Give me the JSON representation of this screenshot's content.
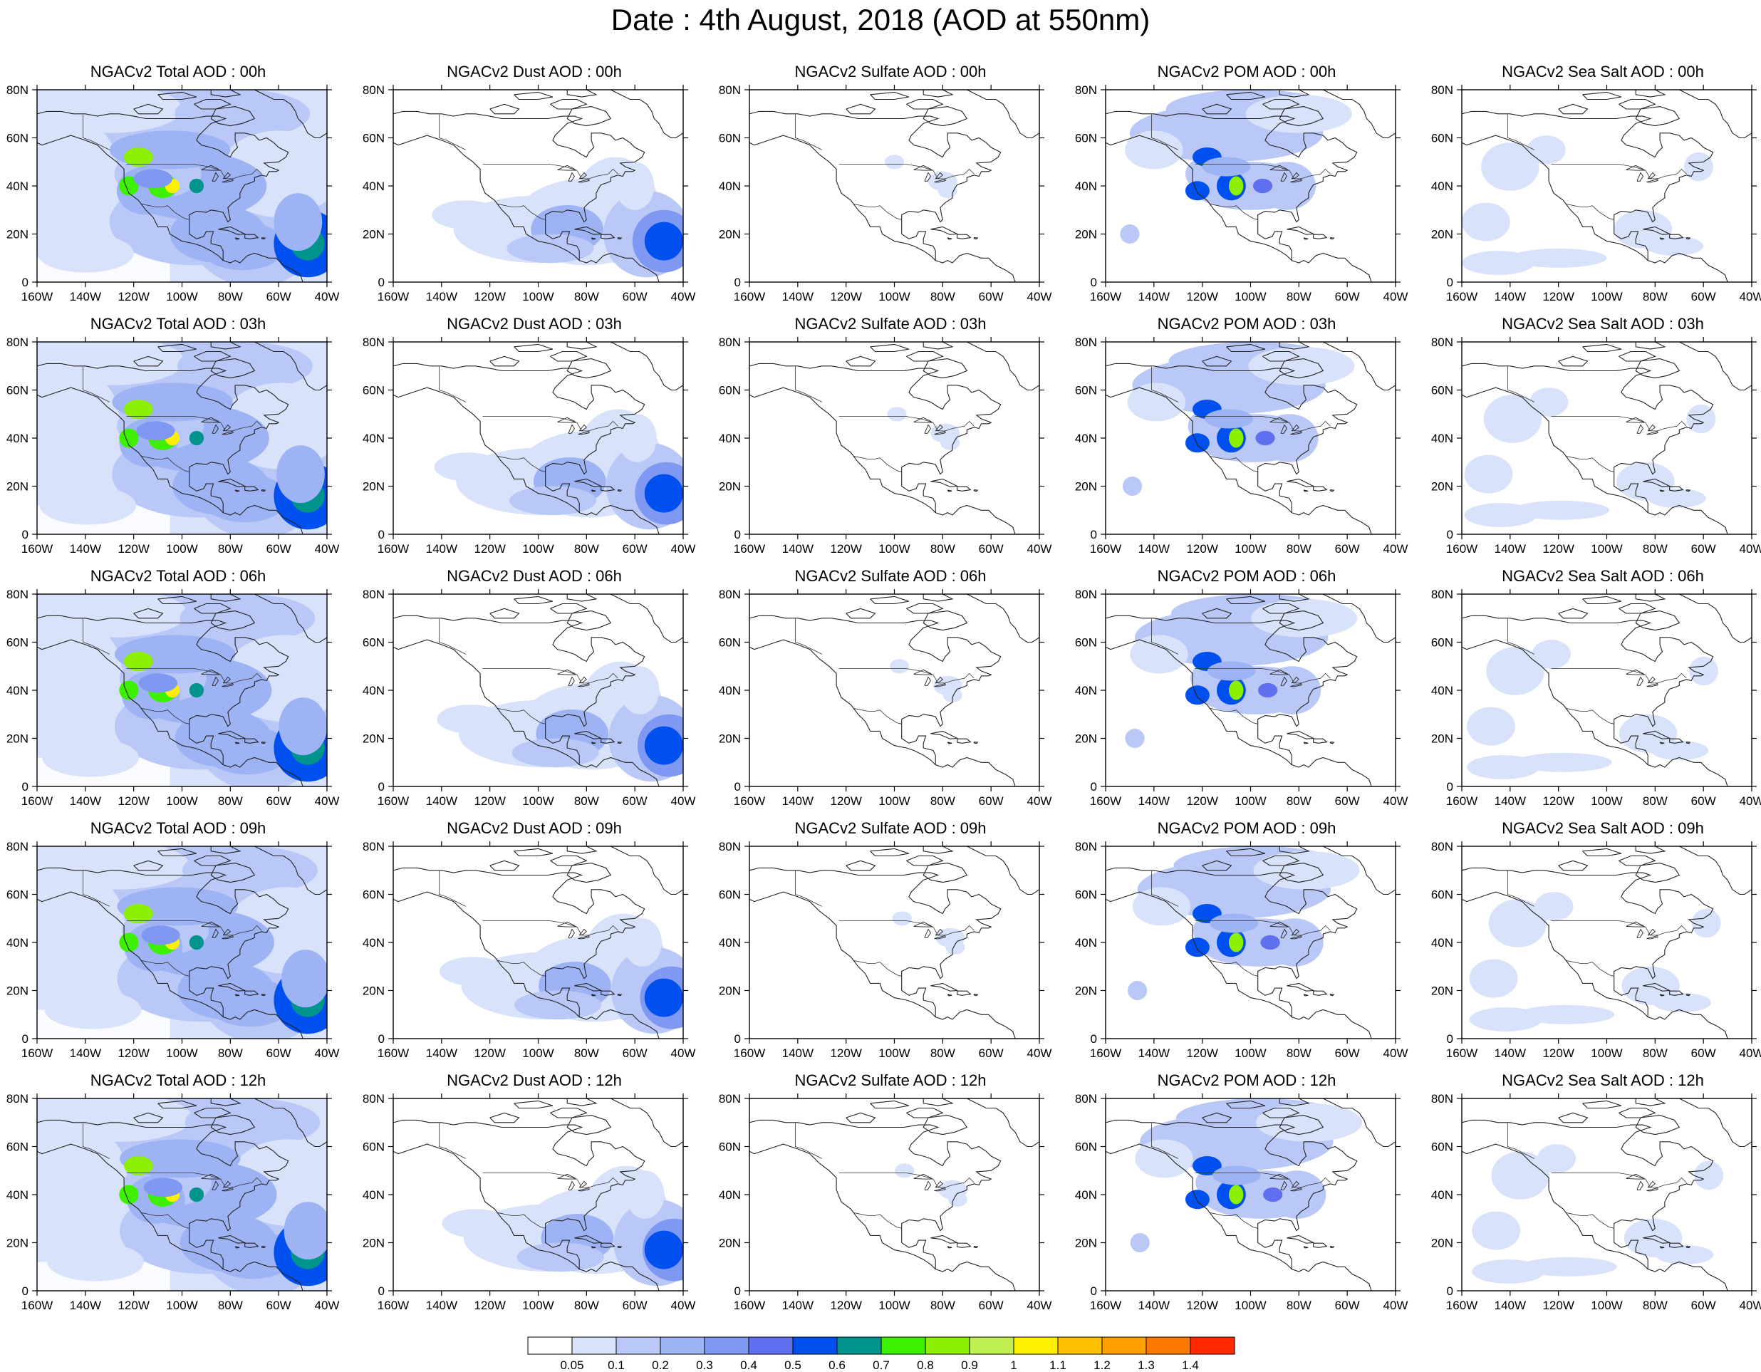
{
  "title": "Date : 4th August, 2018 (AOD at 550nm)",
  "map_axes": {
    "lon_ticks": [
      "160W",
      "140W",
      "120W",
      "100W",
      "80W",
      "60W",
      "40W"
    ],
    "lat_ticks": [
      "0",
      "20N",
      "40N",
      "60N",
      "80N"
    ]
  },
  "panels": [
    {
      "title": "NGACv2 Total AOD : 00h",
      "species": "total",
      "hour": 0
    },
    {
      "title": "NGACv2 Dust AOD : 00h",
      "species": "dust",
      "hour": 0
    },
    {
      "title": "NGACv2 Sulfate AOD : 00h",
      "species": "sulfate",
      "hour": 0
    },
    {
      "title": "NGACv2 POM AOD : 00h",
      "species": "pom",
      "hour": 0
    },
    {
      "title": "NGACv2 Sea Salt AOD : 00h",
      "species": "seasalt",
      "hour": 0
    },
    {
      "title": "NGACv2 Total AOD : 03h",
      "species": "total",
      "hour": 3
    },
    {
      "title": "NGACv2 Dust AOD : 03h",
      "species": "dust",
      "hour": 3
    },
    {
      "title": "NGACv2 Sulfate AOD : 03h",
      "species": "sulfate",
      "hour": 3
    },
    {
      "title": "NGACv2 POM AOD : 03h",
      "species": "pom",
      "hour": 3
    },
    {
      "title": "NGACv2 Sea Salt AOD : 03h",
      "species": "seasalt",
      "hour": 3
    },
    {
      "title": "NGACv2 Total AOD : 06h",
      "species": "total",
      "hour": 6
    },
    {
      "title": "NGACv2 Dust AOD : 06h",
      "species": "dust",
      "hour": 6
    },
    {
      "title": "NGACv2 Sulfate AOD : 06h",
      "species": "sulfate",
      "hour": 6
    },
    {
      "title": "NGACv2 POM AOD : 06h",
      "species": "pom",
      "hour": 6
    },
    {
      "title": "NGACv2 Sea Salt AOD : 06h",
      "species": "seasalt",
      "hour": 6
    },
    {
      "title": "NGACv2 Total AOD : 09h",
      "species": "total",
      "hour": 9
    },
    {
      "title": "NGACv2 Dust AOD : 09h",
      "species": "dust",
      "hour": 9
    },
    {
      "title": "NGACv2 Sulfate AOD : 09h",
      "species": "sulfate",
      "hour": 9
    },
    {
      "title": "NGACv2 POM AOD : 09h",
      "species": "pom",
      "hour": 9
    },
    {
      "title": "NGACv2 Sea Salt  AOD : 09h",
      "species": "seasalt",
      "hour": 9
    },
    {
      "title": "NGACv2 Total AOD  : 12h",
      "species": "total",
      "hour": 12
    },
    {
      "title": "NGACv2 Dust AOD : 12h",
      "species": "dust",
      "hour": 12
    },
    {
      "title": "NGACv2 Sulfate AOD : 12h",
      "species": "sulfate",
      "hour": 12
    },
    {
      "title": "NGACv2 POM  AOD : 12h",
      "species": "pom",
      "hour": 12
    },
    {
      "title": "NGACv2 Sea Salt  AOD : 12h",
      "species": "seasalt",
      "hour": 12
    }
  ],
  "colorbar": {
    "labels": [
      "0.05",
      "0.1",
      "0.2",
      "0.3",
      "0.4",
      "0.5",
      "0.6",
      "0.7",
      "0.8",
      "0.9",
      "1",
      "1.1",
      "1.2",
      "1.3",
      "1.4"
    ],
    "colors": [
      "#ffffff",
      "#d8e2fb",
      "#b9c8f7",
      "#9db3f4",
      "#7f98f1",
      "#5f6fed",
      "#0050f0",
      "#00948c",
      "#3cf000",
      "#8cf000",
      "#c0f050",
      "#fff000",
      "#ffc000",
      "#ffa000",
      "#ff7800",
      "#ff2800"
    ]
  }
}
